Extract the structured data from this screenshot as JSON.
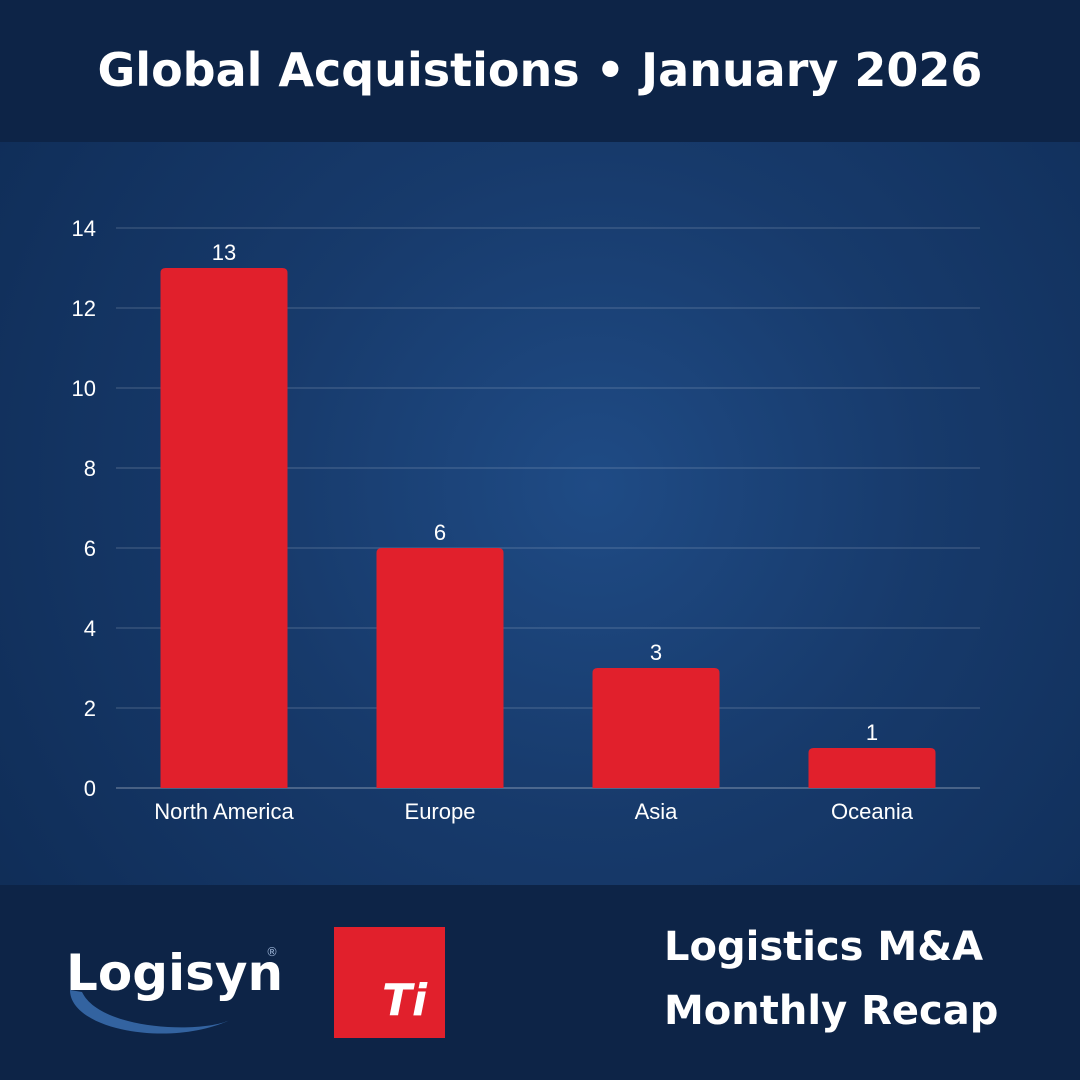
{
  "header": {
    "title": "Global Acquistions • January 2026"
  },
  "chart_data": {
    "type": "bar",
    "title": "Global Acquistions • January 2026",
    "categories": [
      "North America",
      "Europe",
      "Asia",
      "Oceania"
    ],
    "values": [
      13,
      6,
      3,
      1
    ],
    "data_labels": [
      "13",
      "6",
      "3",
      "1"
    ],
    "ylim": [
      0,
      14
    ],
    "yticks": [
      0,
      2,
      4,
      6,
      8,
      10,
      12,
      14
    ],
    "xlabel": "",
    "ylabel": "",
    "grid": true,
    "bar_color": "#e1202c"
  },
  "footer": {
    "recap_line1": "Logistics M&A",
    "recap_line2": "Monthly Recap",
    "logisyn_logo_text": "Logisyn",
    "ti_logo_text": "Ti"
  },
  "colors": {
    "header_bg": "#0d2447",
    "background": "#173a6b",
    "bar": "#e1202c",
    "text": "#ffffff"
  }
}
